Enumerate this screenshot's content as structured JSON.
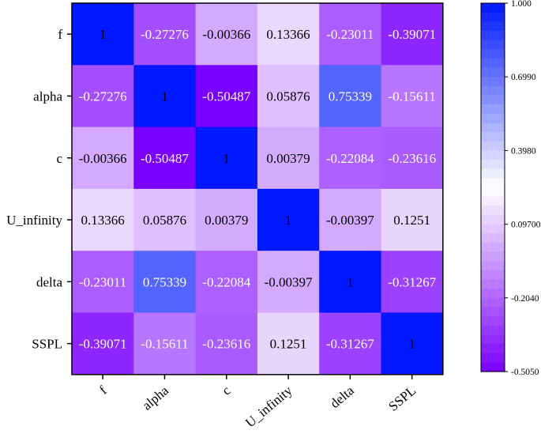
{
  "chart_data": {
    "type": "heatmap",
    "title": "",
    "xlabel": "",
    "ylabel": "",
    "variables": [
      "f",
      "alpha",
      "c",
      "U_infinity",
      "delta",
      "SSPL"
    ],
    "matrix": [
      [
        1,
        -0.27276,
        -0.00366,
        0.13366,
        -0.23011,
        -0.39071
      ],
      [
        -0.27276,
        1,
        -0.50487,
        0.05876,
        0.75339,
        -0.15611
      ],
      [
        -0.00366,
        -0.50487,
        1,
        0.00379,
        -0.22084,
        -0.23616
      ],
      [
        0.13366,
        0.05876,
        0.00379,
        1,
        -0.00397,
        0.1251
      ],
      [
        -0.23011,
        0.75339,
        -0.22084,
        -0.00397,
        1,
        -0.31267
      ],
      [
        -0.39071,
        -0.15611,
        -0.23616,
        0.1251,
        -0.31267,
        1
      ]
    ],
    "cell_labels": [
      [
        "1",
        "-0.27276",
        "-0.00366",
        "0.13366",
        "-0.23011",
        "-0.39071"
      ],
      [
        "-0.27276",
        "1",
        "-0.50487",
        "0.05876",
        "0.75339",
        "-0.15611"
      ],
      [
        "-0.00366",
        "-0.50487",
        "1",
        "0.00379",
        "-0.22084",
        "-0.23616"
      ],
      [
        "0.13366",
        "0.05876",
        "0.00379",
        "1",
        "-0.00397",
        "0.1251"
      ],
      [
        "-0.23011",
        "0.75339",
        "-0.22084",
        "-0.00397",
        "1",
        "-0.31267"
      ],
      [
        "-0.39071",
        "-0.15611",
        "-0.23616",
        "0.1251",
        "-0.31267",
        "1"
      ]
    ],
    "colorbar": {
      "min": -0.505,
      "max": 1.0,
      "neutral": 0.2475,
      "steps": 40,
      "ticks": [
        {
          "value": 1.0,
          "label": "1.000"
        },
        {
          "value": 0.699,
          "label": "0.6990"
        },
        {
          "value": 0.398,
          "label": "0.3980"
        },
        {
          "value": 0.097,
          "label": "0.09700"
        },
        {
          "value": -0.204,
          "label": "-0.2040"
        },
        {
          "value": -0.505,
          "label": "-0.5050"
        }
      ],
      "low_color": "#7a00ff",
      "neutral_color": "#ffffff",
      "high_color": "#0018ff"
    }
  }
}
